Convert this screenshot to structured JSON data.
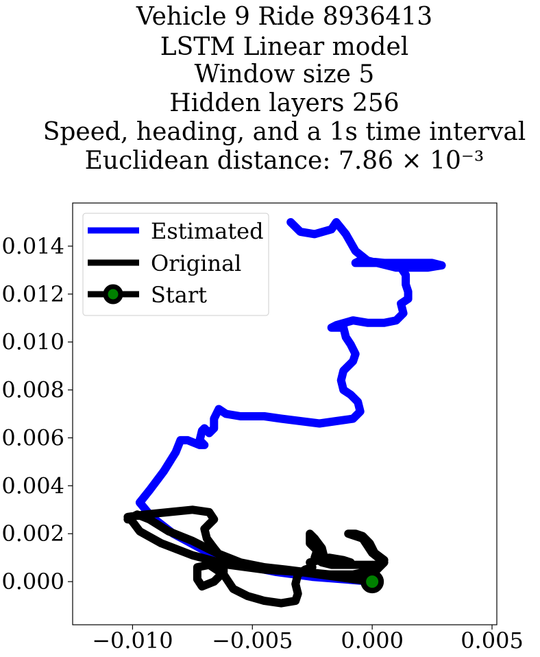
{
  "chart_data": {
    "type": "line",
    "title_lines": [
      "Vehicle 9 Ride 8936413",
      "LSTM Linear model",
      "Window size 5",
      "Hidden layers 256",
      "Speed, heading, and a 1s time interval",
      "Euclidean distance: 7.86 × 10⁻³"
    ],
    "xlim": [
      -0.0125,
      0.0052
    ],
    "ylim": [
      -0.0018,
      0.0158
    ],
    "x_ticks": [
      -0.01,
      -0.005,
      0.0,
      0.005
    ],
    "x_tick_labels": [
      "−0.010",
      "−0.005",
      "0.000",
      "0.005"
    ],
    "y_ticks": [
      0.0,
      0.002,
      0.004,
      0.006,
      0.008,
      0.01,
      0.012,
      0.014
    ],
    "y_tick_labels": [
      "0.000",
      "0.002",
      "0.004",
      "0.006",
      "0.008",
      "0.010",
      "0.012",
      "0.014"
    ],
    "grid": false,
    "legend_position": "top-left",
    "series": [
      {
        "name": "Estimated",
        "color": "#0000ff",
        "points": [
          [
            0.0,
            0.0
          ],
          [
            -0.0012,
            0.0001
          ],
          [
            -0.0025,
            0.0002
          ],
          [
            -0.004,
            0.0004
          ],
          [
            -0.0055,
            0.0007
          ],
          [
            -0.007,
            0.0013
          ],
          [
            -0.0083,
            0.002
          ],
          [
            -0.0092,
            0.0027
          ],
          [
            -0.0097,
            0.0033
          ],
          [
            -0.0093,
            0.0038
          ],
          [
            -0.0087,
            0.0046
          ],
          [
            -0.0082,
            0.0054
          ],
          [
            -0.008,
            0.0059
          ],
          [
            -0.0077,
            0.0059
          ],
          [
            -0.0072,
            0.0057
          ],
          [
            -0.007,
            0.0057
          ],
          [
            -0.0072,
            0.0059
          ],
          [
            -0.0071,
            0.0063
          ],
          [
            -0.007,
            0.0064
          ],
          [
            -0.0068,
            0.0062
          ],
          [
            -0.0066,
            0.0064
          ],
          [
            -0.0066,
            0.0068
          ],
          [
            -0.0064,
            0.0072
          ],
          [
            -0.0061,
            0.007
          ],
          [
            -0.0055,
            0.0069
          ],
          [
            -0.0045,
            0.0069
          ],
          [
            -0.0038,
            0.0068
          ],
          [
            -0.003,
            0.0067
          ],
          [
            -0.0022,
            0.0066
          ],
          [
            -0.0015,
            0.0067
          ],
          [
            -0.0008,
            0.0068
          ],
          [
            -0.0005,
            0.0071
          ],
          [
            -0.0006,
            0.0075
          ],
          [
            -0.0009,
            0.0078
          ],
          [
            -0.0012,
            0.008
          ],
          [
            -0.0013,
            0.0084
          ],
          [
            -0.0012,
            0.0088
          ],
          [
            -0.0008,
            0.0092
          ],
          [
            -0.0007,
            0.0095
          ],
          [
            -0.0009,
            0.0099
          ],
          [
            -0.0011,
            0.0102
          ],
          [
            -0.0012,
            0.0106
          ],
          [
            -0.0017,
            0.0106
          ],
          [
            -0.0015,
            0.0107
          ],
          [
            -0.0008,
            0.0109
          ],
          [
            -0.0002,
            0.0108
          ],
          [
            0.0005,
            0.0108
          ],
          [
            0.001,
            0.0109
          ],
          [
            0.0013,
            0.0112
          ],
          [
            0.0012,
            0.0116
          ],
          [
            0.0015,
            0.0118
          ],
          [
            0.0015,
            0.0121
          ],
          [
            0.0014,
            0.0124
          ],
          [
            0.0014,
            0.0128
          ],
          [
            0.0012,
            0.0131
          ],
          [
            0.0005,
            0.0133
          ],
          [
            -0.0005,
            0.0134
          ],
          [
            -0.0007,
            0.0133
          ],
          [
            0.0,
            0.0133
          ],
          [
            0.0012,
            0.0133
          ],
          [
            0.0025,
            0.0133
          ],
          [
            0.0029,
            0.0132
          ],
          [
            0.0023,
            0.0131
          ],
          [
            0.001,
            0.0131
          ],
          [
            -0.0002,
            0.0134
          ],
          [
            -0.0007,
            0.0138
          ],
          [
            -0.0011,
            0.0145
          ],
          [
            -0.0015,
            0.015
          ],
          [
            -0.0017,
            0.0147
          ],
          [
            -0.0024,
            0.0145
          ],
          [
            -0.003,
            0.0146
          ],
          [
            -0.0034,
            0.015
          ]
        ]
      },
      {
        "name": "Original",
        "color": "#000000",
        "points": [
          [
            0.0,
            0.0
          ],
          [
            -0.0015,
            0.0002
          ],
          [
            -0.003,
            0.0004
          ],
          [
            -0.0045,
            0.0005
          ],
          [
            -0.006,
            0.0007
          ],
          [
            -0.0075,
            0.0011
          ],
          [
            -0.0088,
            0.0016
          ],
          [
            -0.0097,
            0.0021
          ],
          [
            -0.01,
            0.0025
          ],
          [
            -0.0102,
            0.0027
          ],
          [
            -0.0095,
            0.0028
          ],
          [
            -0.0085,
            0.0029
          ],
          [
            -0.0075,
            0.003
          ],
          [
            -0.0068,
            0.0029
          ],
          [
            -0.0066,
            0.0026
          ],
          [
            -0.0068,
            0.0024
          ],
          [
            -0.007,
            0.0022
          ],
          [
            -0.0069,
            0.0018
          ],
          [
            -0.0066,
            0.0014
          ],
          [
            -0.0062,
            0.0009
          ],
          [
            -0.0062,
            0.0004
          ],
          [
            -0.0066,
            0.0
          ],
          [
            -0.0071,
            -0.0002
          ],
          [
            -0.0073,
            0.0001
          ],
          [
            -0.0073,
            0.0006
          ],
          [
            -0.0068,
            0.0007
          ],
          [
            -0.0062,
            0.0003
          ],
          [
            -0.0058,
            -0.0003
          ],
          [
            -0.0052,
            -0.0006
          ],
          [
            -0.0045,
            -0.0008
          ],
          [
            -0.0038,
            -0.0009
          ],
          [
            -0.0032,
            -0.0008
          ],
          [
            -0.0031,
            -0.0005
          ],
          [
            -0.0032,
            -0.0001
          ],
          [
            -0.0031,
            0.0003
          ],
          [
            -0.0028,
            0.0005
          ],
          [
            -0.0025,
            0.0006
          ],
          [
            -0.0026,
            0.0008
          ],
          [
            -0.0022,
            0.0009
          ],
          [
            -0.0018,
            0.001
          ],
          [
            -0.0012,
            0.0009
          ],
          [
            -0.0009,
            0.0008
          ],
          [
            -0.0012,
            0.0007
          ],
          [
            -0.0017,
            0.0007
          ],
          [
            -0.0021,
            0.0008
          ],
          [
            -0.0024,
            0.001
          ],
          [
            -0.0023,
            0.0013
          ],
          [
            -0.0026,
            0.0016
          ],
          [
            -0.0026,
            0.002
          ],
          [
            -0.0024,
            0.0018
          ],
          [
            -0.0021,
            0.0014
          ],
          [
            -0.002,
            0.001
          ],
          [
            -0.0016,
            0.0009
          ],
          [
            -0.0012,
            0.0007
          ],
          [
            -0.0005,
            0.0007
          ],
          [
            0.0002,
            0.0007
          ],
          [
            0.0005,
            0.0009
          ],
          [
            0.0001,
            0.0012
          ],
          [
            -0.0001,
            0.0016
          ],
          [
            -0.0004,
            0.0019
          ],
          [
            -0.0007,
            0.002
          ],
          [
            -0.001,
            0.002
          ],
          [
            -0.0007,
            0.0019
          ],
          [
            -0.0004,
            0.0018
          ],
          [
            -0.0002,
            0.0015
          ],
          [
            0.0,
            0.0012
          ],
          [
            0.0005,
            0.0008
          ],
          [
            0.0002,
            0.0005
          ],
          [
            -0.0008,
            0.0003
          ],
          [
            -0.0018,
            0.0003
          ],
          [
            -0.0028,
            0.0004
          ],
          [
            -0.0036,
            0.0005
          ],
          [
            -0.0045,
            0.0006
          ],
          [
            -0.0055,
            0.0008
          ],
          [
            -0.0065,
            0.0012
          ],
          [
            -0.0075,
            0.0017
          ],
          [
            -0.0085,
            0.0021
          ],
          [
            -0.0093,
            0.0026
          ],
          [
            -0.0098,
            0.0028
          ],
          [
            -0.0102,
            0.0026
          ]
        ]
      }
    ],
    "start_marker": {
      "name": "Start",
      "x": 0.0,
      "y": 0.0,
      "face_color": "#008000",
      "edge_color": "#000000"
    }
  }
}
